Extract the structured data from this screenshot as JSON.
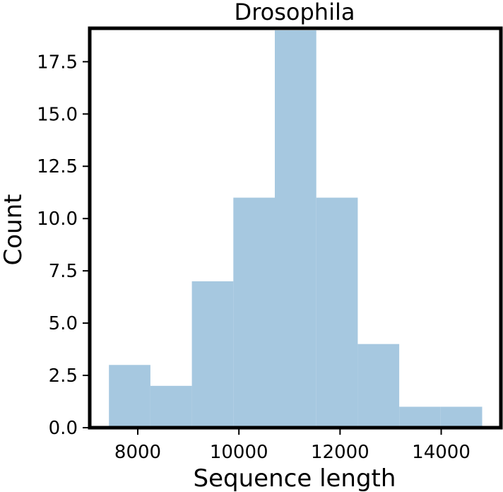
{
  "chart_data": {
    "type": "bar",
    "subtype": "histogram",
    "title": "Drosophila",
    "xlabel": "Sequence length",
    "ylabel": "Count",
    "bin_edges": [
      7430,
      8250,
      9070,
      9890,
      10710,
      11530,
      12350,
      13170,
      13990,
      14810
    ],
    "values": [
      3,
      2,
      7,
      11,
      19,
      11,
      4,
      1,
      1
    ],
    "xlim": [
      7050,
      15180
    ],
    "ylim": [
      0,
      19.1
    ],
    "x_ticks": [
      8000,
      10000,
      12000,
      14000
    ],
    "x_tick_labels": [
      "8000",
      "10000",
      "12000",
      "14000"
    ],
    "y_ticks": [
      0,
      2.5,
      5,
      7.5,
      10,
      12.5,
      15,
      17.5
    ],
    "y_tick_labels": [
      "0.0",
      "2.5",
      "5.0",
      "7.5",
      "10.0",
      "12.5",
      "15.0",
      "17.5"
    ],
    "grid": false,
    "bar_color": "#a6c8e0",
    "frame_color": "#000000"
  }
}
